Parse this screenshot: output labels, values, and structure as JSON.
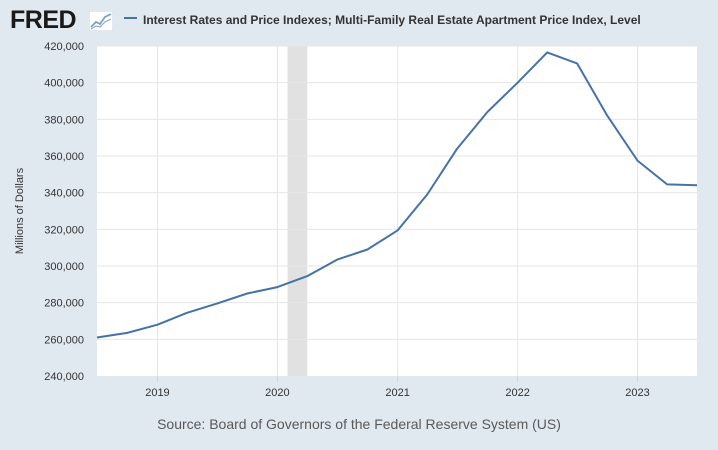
{
  "brand": {
    "logo_text": "FRED",
    "logo_icon": "line-chart-icon"
  },
  "colors": {
    "series": "#4572a7",
    "recession": "#e1e1e1",
    "plot_bg": "#ffffff",
    "page_bg": "#e1e9f0",
    "grid": "#e6e6e6"
  },
  "source": "Source: Board of Governors of the Federal Reserve System (US)",
  "chart_data": {
    "type": "line",
    "title": "",
    "xlabel": "",
    "ylabel": "Millions of Dollars",
    "legend_placement": "top-left",
    "grid": true,
    "x_type": "date",
    "xlim": [
      "2018-07-01",
      "2023-07-01"
    ],
    "ylim": [
      240000,
      420000
    ],
    "y_ticks": [
      240000,
      260000,
      280000,
      300000,
      320000,
      340000,
      360000,
      380000,
      400000,
      420000
    ],
    "y_tick_labels": [
      "240,000",
      "260,000",
      "280,000",
      "300,000",
      "320,000",
      "340,000",
      "360,000",
      "380,000",
      "400,000",
      "420,000"
    ],
    "x_ticks": [
      "2019-01-01",
      "2020-01-01",
      "2021-01-01",
      "2022-01-01",
      "2023-01-01"
    ],
    "x_tick_labels": [
      "2019",
      "2020",
      "2021",
      "2022",
      "2023"
    ],
    "recessions": [
      {
        "start": "2020-02-01",
        "end": "2020-04-01"
      }
    ],
    "series": [
      {
        "name": "Interest Rates and Price Indexes; Multi-Family Real Estate Apartment Price Index, Level",
        "x": [
          "2018-07-01",
          "2018-10-01",
          "2019-01-01",
          "2019-04-01",
          "2019-07-01",
          "2019-10-01",
          "2020-01-01",
          "2020-04-01",
          "2020-07-01",
          "2020-10-01",
          "2021-01-01",
          "2021-04-01",
          "2021-07-01",
          "2021-10-01",
          "2022-01-01",
          "2022-04-01",
          "2022-07-01",
          "2022-10-01",
          "2023-01-01",
          "2023-04-01",
          "2023-07-01"
        ],
        "y": [
          261000,
          263500,
          268000,
          274500,
          279500,
          285000,
          288500,
          294500,
          303500,
          309000,
          319500,
          339000,
          364000,
          384000,
          400000,
          416500,
          410500,
          382000,
          357500,
          344500,
          344000
        ]
      }
    ]
  }
}
